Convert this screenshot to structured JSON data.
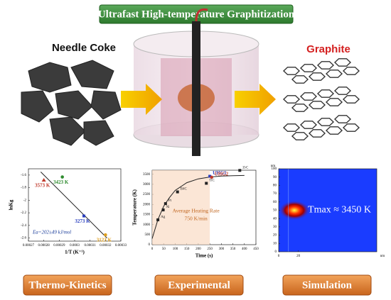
{
  "header": {
    "title": "Ultrafast High-temperature Graphitization"
  },
  "labels": {
    "left": "Needle Coke",
    "right": "Graphite"
  },
  "captions": [
    "Thermo-Kinetics",
    "Experimental",
    "Simulation"
  ],
  "chart_data": [
    {
      "type": "scatter",
      "x_label": "1/T (K⁻¹)",
      "y_label": "lnKg",
      "annotation": "Ea=202±49 kJ/mol",
      "xlim": [
        0.00027,
        0.00033
      ],
      "xticks": [
        0.00027,
        0.00028,
        0.00029,
        0.0003,
        0.00031,
        0.00032,
        0.00033
      ],
      "ylim": [
        -2.65,
        -1.5
      ],
      "yticks": [
        -1.6,
        -1.8,
        -2.0,
        -2.2,
        -2.4,
        -2.6
      ],
      "fit": {
        "x": [
          0.000278,
          0.000321
        ],
        "values": [
          -1.55,
          -2.6
        ]
      },
      "series": [
        {
          "name": "3573 K",
          "color": "#c0392b",
          "marker": "triangle",
          "x": [
            0.00028
          ],
          "values": [
            -1.68
          ]
        },
        {
          "name": "3423 K",
          "color": "#2e8b2e",
          "marker": "circle",
          "x": [
            0.000292
          ],
          "values": [
            -1.63
          ]
        },
        {
          "name": "3273 K",
          "color": "#2a3fbf",
          "marker": "square",
          "x": [
            0.000306
          ],
          "values": [
            -2.25
          ]
        },
        {
          "name": "3123 K",
          "color": "#e0a020",
          "marker": "circle",
          "x": [
            0.00032
          ],
          "values": [
            -2.55
          ]
        }
      ]
    },
    {
      "type": "line",
      "x_label": "Time (s)",
      "y_label": "Temperature (K)",
      "annotation": [
        "Average Heating Rate",
        "750 K/min"
      ],
      "xlim": [
        0,
        450
      ],
      "xticks": [
        0,
        50,
        100,
        150,
        200,
        250,
        300,
        350,
        400,
        450
      ],
      "ylim": [
        0,
        3700
      ],
      "yticks": [
        0,
        500,
        1000,
        1500,
        2000,
        2500,
        3000,
        3500
      ],
      "fit": {
        "x": [
          0,
          25,
          50,
          75,
          100,
          150,
          200,
          250,
          300,
          350,
          400
        ],
        "values": [
          300,
          1245,
          1907,
          2335,
          2694,
          3081,
          3270,
          3362,
          3407,
          3429,
          3440
        ]
      },
      "series": [
        {
          "name": "Ag",
          "color": "#222",
          "marker": "square",
          "x": [
            25
          ],
          "values": [
            1235
          ]
        },
        {
          "name": "Ni",
          "color": "#222",
          "marker": "square",
          "x": [
            48
          ],
          "values": [
            1728
          ]
        },
        {
          "name": "Pt",
          "color": "#222",
          "marker": "square",
          "x": [
            58
          ],
          "values": [
            2041
          ]
        },
        {
          "name": "B4C",
          "color": "#222",
          "marker": "square",
          "x": [
            110
          ],
          "values": [
            2623
          ]
        },
        {
          "name": "TiC",
          "color": "#222",
          "marker": "square",
          "x": [
            235
          ],
          "values": [
            3050
          ]
        },
        {
          "name": "UHG1",
          "color": "#2a3fbf",
          "marker": "square",
          "x": [
            250
          ],
          "values": [
            3400
          ]
        },
        {
          "name": "UHG2",
          "color": "#c0392b",
          "marker": "circle",
          "x": [
            258
          ],
          "values": [
            3350
          ]
        },
        {
          "name": "ZrC",
          "color": "#222",
          "marker": "square",
          "x": [
            380
          ],
          "values": [
            3690
          ]
        }
      ]
    },
    {
      "type": "heatmap",
      "annotation": "Tmax ≈ 3450 K",
      "x_unit": "nm",
      "y_unit": "nm",
      "xlim": [
        0,
        100
      ],
      "xticks": [
        0,
        20
      ],
      "ylim": [
        0,
        100
      ],
      "yticks": [
        0,
        10,
        20,
        30,
        40,
        50,
        60,
        70,
        80,
        90,
        100
      ]
    }
  ]
}
